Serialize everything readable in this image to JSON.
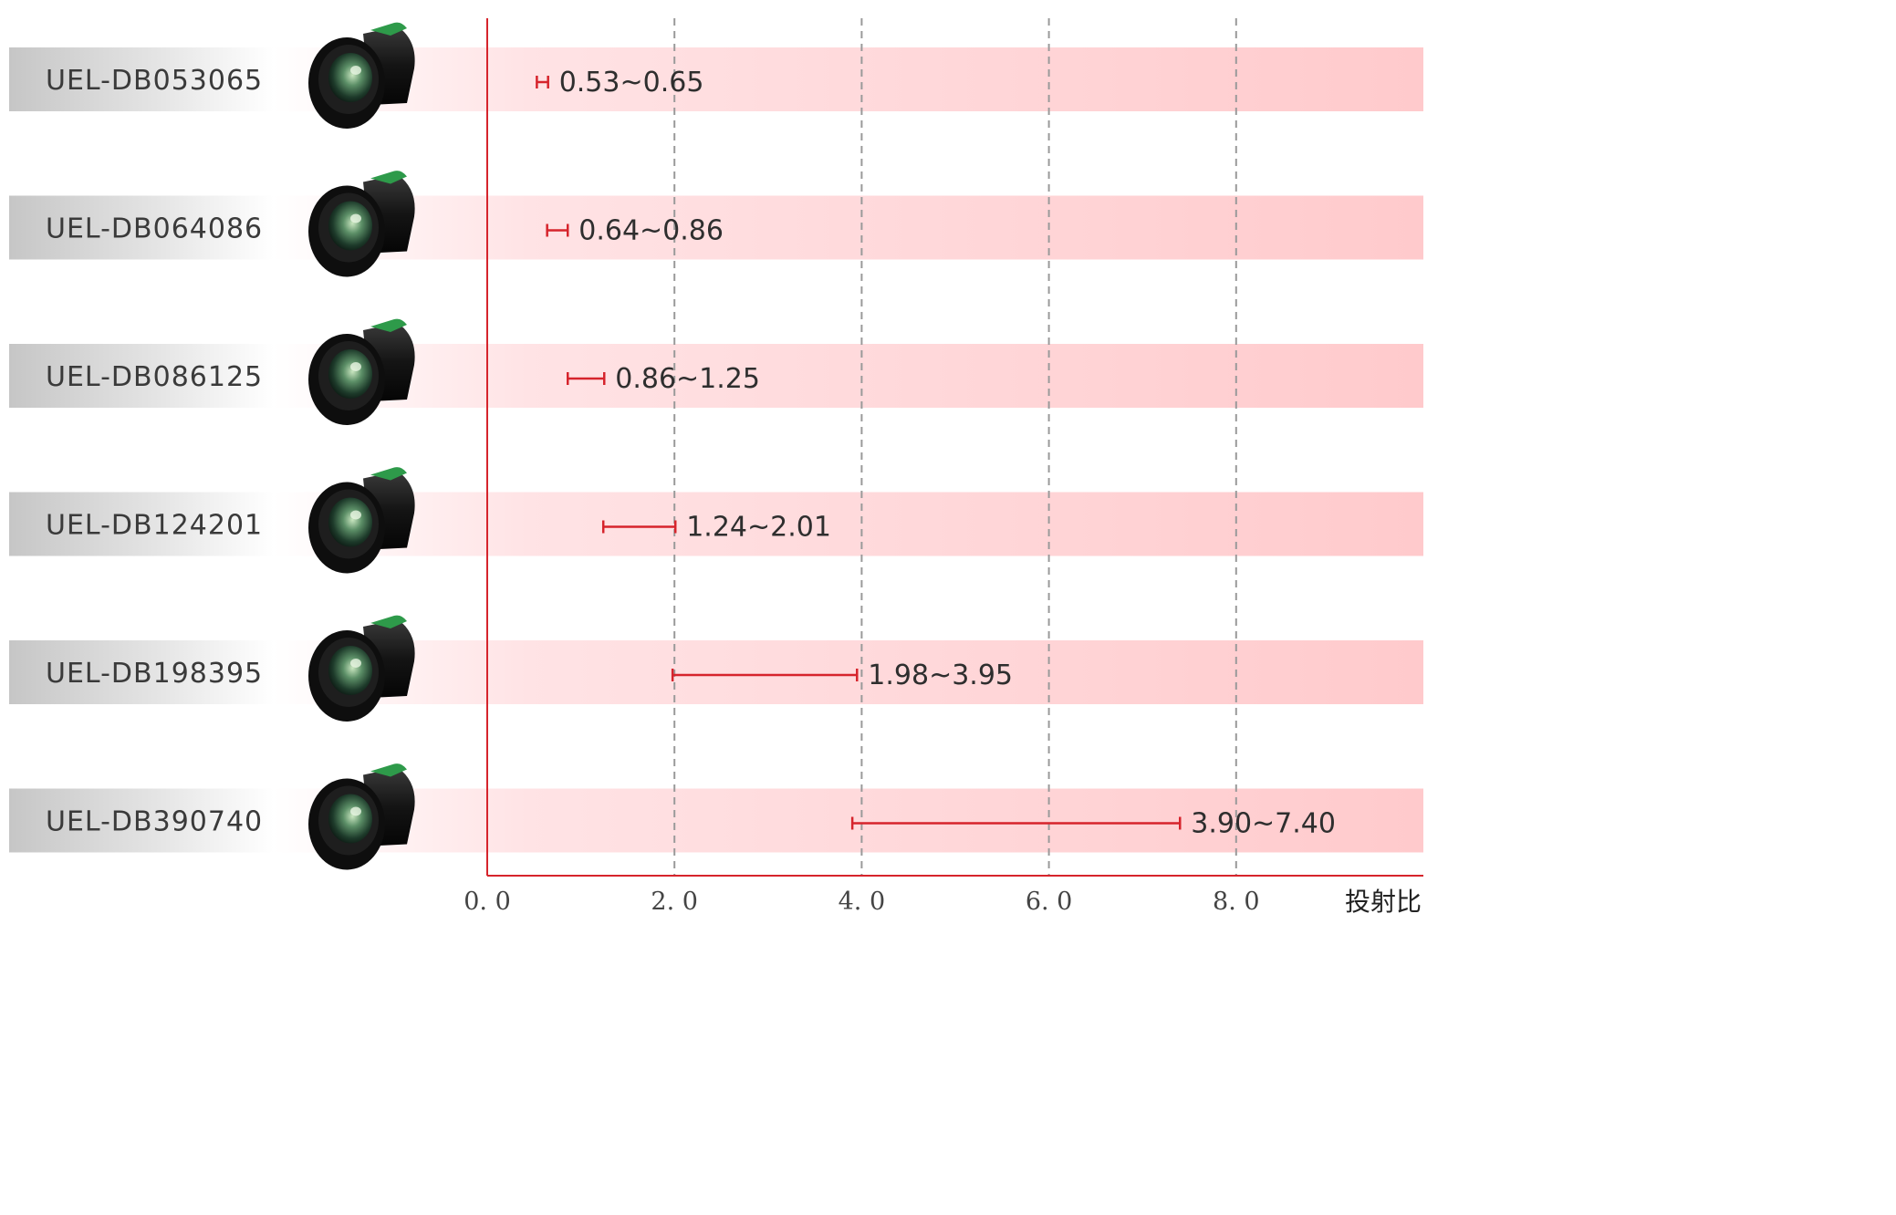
{
  "chart_data": {
    "type": "range-bar",
    "x_label": "投射比",
    "xlim": [
      0,
      10.2
    ],
    "x_ticks": [
      0,
      2,
      4,
      6,
      8
    ],
    "tick_labels": [
      "0. 0",
      "2. 0",
      "4. 0",
      "6. 0",
      "8. 0"
    ],
    "gridlines": "dashed vertical at 2.0, 4.0, 6.0, 8.0",
    "colors": {
      "range": "#d6242c",
      "axis": "#d6242c",
      "band": "#ffcdd0",
      "name_band": "#c8c8c8",
      "grid": "#9a9a9a"
    },
    "series": [
      {
        "name": "UEL-DB053065",
        "min": 0.53,
        "max": 0.65,
        "label": "0.53~0.65"
      },
      {
        "name": "UEL-DB064086",
        "min": 0.64,
        "max": 0.86,
        "label": "0.64~0.86"
      },
      {
        "name": "UEL-DB086125",
        "min": 0.86,
        "max": 1.25,
        "label": "0.86~1.25"
      },
      {
        "name": "UEL-DB124201",
        "min": 1.24,
        "max": 2.01,
        "label": "1.24~2.01"
      },
      {
        "name": "UEL-DB198395",
        "min": 1.98,
        "max": 3.95,
        "label": "1.98~3.95"
      },
      {
        "name": "UEL-DB390740",
        "min": 3.9,
        "max": 7.4,
        "label": "3.90~7.40"
      }
    ]
  }
}
